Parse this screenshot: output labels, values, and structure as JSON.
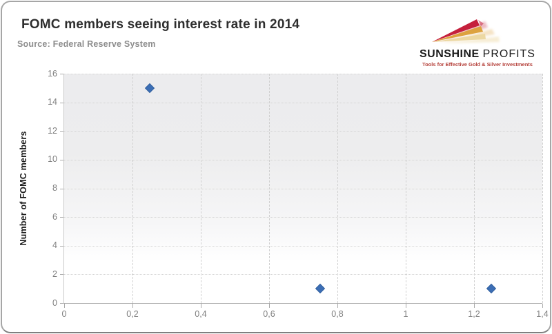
{
  "card": {
    "title": "FOMC members seeing interest rate in 2014",
    "source": "Source: Federal Reserve System"
  },
  "logo": {
    "name_bold": "SUNSHINE",
    "name_light": "PROFITS",
    "tagline": "Tools for Effective Gold & Silver Investments",
    "colors": {
      "red": "#c5203c",
      "gold": "#dda23e",
      "cream": "#ecd8a2",
      "tagline_red": "#b5403a"
    }
  },
  "chart_data": {
    "type": "scatter",
    "title": "FOMC members seeing interest rate in 2014",
    "xlabel": "",
    "ylabel": "Number of FOMC members",
    "xlim": [
      0,
      1.4
    ],
    "ylim": [
      0,
      16
    ],
    "grid": true,
    "legend": "none",
    "marker": {
      "shape": "diamond",
      "color": "#3c6eb5"
    },
    "x_ticks": [
      {
        "value": 0,
        "label": "0"
      },
      {
        "value": 0.2,
        "label": "0,2"
      },
      {
        "value": 0.4,
        "label": "0,4"
      },
      {
        "value": 0.6,
        "label": "0,6"
      },
      {
        "value": 0.8,
        "label": "0,8"
      },
      {
        "value": 1,
        "label": "1"
      },
      {
        "value": 1.2,
        "label": "1,2"
      },
      {
        "value": 1.4,
        "label": "1,4"
      }
    ],
    "y_ticks": [
      {
        "value": 0,
        "label": "0"
      },
      {
        "value": 2,
        "label": "2"
      },
      {
        "value": 4,
        "label": "4"
      },
      {
        "value": 6,
        "label": "6"
      },
      {
        "value": 8,
        "label": "8"
      },
      {
        "value": 10,
        "label": "10"
      },
      {
        "value": 12,
        "label": "12"
      },
      {
        "value": 14,
        "label": "14"
      },
      {
        "value": 16,
        "label": "16"
      }
    ],
    "points": [
      {
        "x": 0.25,
        "y": 15
      },
      {
        "x": 0.75,
        "y": 1
      },
      {
        "x": 1.25,
        "y": 1
      }
    ]
  }
}
